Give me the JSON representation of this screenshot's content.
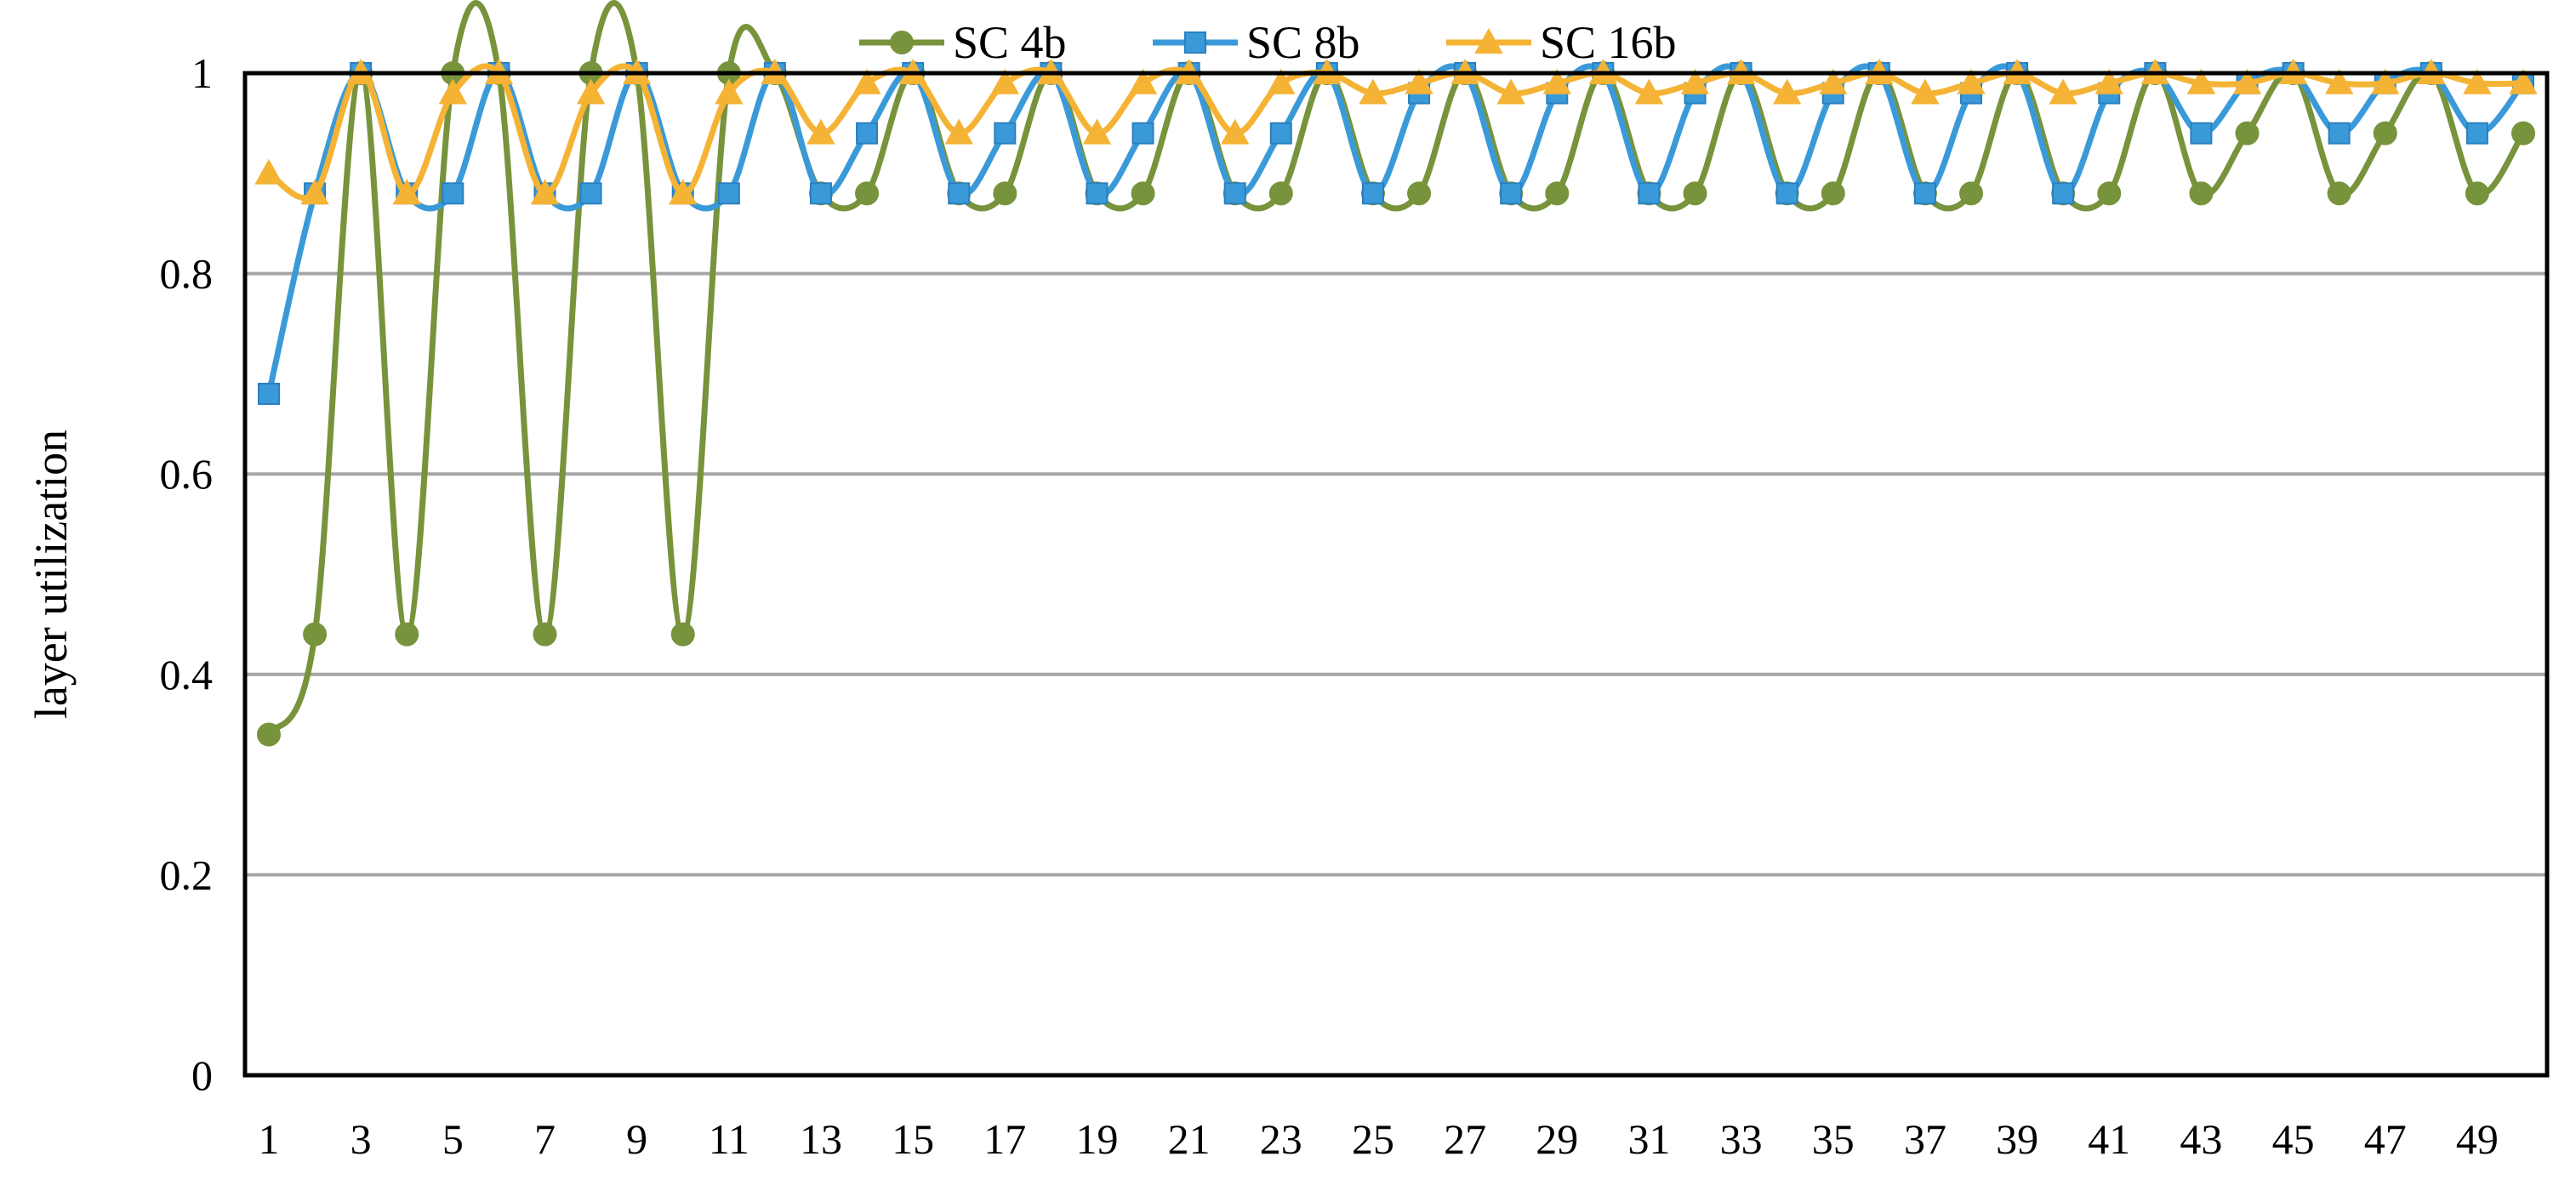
{
  "chart_data": {
    "type": "line",
    "title": "",
    "xlabel": "",
    "ylabel": "layer utilization",
    "ylim": [
      0,
      1
    ],
    "yticks": [
      "0",
      "0.2",
      "0.4",
      "0.6",
      "0.8",
      "1"
    ],
    "xlim": [
      1,
      50
    ],
    "xticks": [
      "1",
      "3",
      "5",
      "7",
      "9",
      "11",
      "13",
      "15",
      "17",
      "19",
      "21",
      "23",
      "25",
      "27",
      "29",
      "31",
      "33",
      "35",
      "37",
      "39",
      "41",
      "43",
      "45",
      "47",
      "49"
    ],
    "grid": "horizontal",
    "legend_position": "top",
    "smooth": true,
    "x": [
      1,
      2,
      3,
      4,
      5,
      6,
      7,
      8,
      9,
      10,
      11,
      12,
      13,
      14,
      15,
      16,
      17,
      18,
      19,
      20,
      21,
      22,
      23,
      24,
      25,
      26,
      27,
      28,
      29,
      30,
      31,
      32,
      33,
      34,
      35,
      36,
      37,
      38,
      39,
      40,
      41,
      42,
      43,
      44,
      45,
      46,
      47,
      48,
      49,
      50
    ],
    "series": [
      {
        "name": "SC 4b",
        "color": "#77933C",
        "marker": "circle",
        "values": [
          0.34,
          0.44,
          1,
          0.44,
          1,
          1,
          0.44,
          1,
          1,
          0.44,
          1,
          1,
          0.88,
          0.88,
          1,
          0.88,
          0.88,
          1,
          0.88,
          0.88,
          1,
          0.88,
          0.88,
          1,
          0.88,
          0.88,
          1,
          0.88,
          0.88,
          1,
          0.88,
          0.88,
          1,
          0.88,
          0.88,
          1,
          0.88,
          0.88,
          1,
          0.88,
          0.88,
          1,
          0.88,
          0.94,
          1,
          0.88,
          0.94,
          1,
          0.88,
          0.94
        ]
      },
      {
        "name": "SC 8b",
        "color": "#3A9AD9",
        "marker": "square",
        "values": [
          0.68,
          0.88,
          1,
          0.88,
          0.88,
          1,
          0.88,
          0.88,
          1,
          0.88,
          0.88,
          1,
          0.88,
          0.94,
          1,
          0.88,
          0.94,
          1,
          0.88,
          0.94,
          1,
          0.88,
          0.94,
          1,
          0.88,
          0.98,
          1,
          0.88,
          0.98,
          1,
          0.88,
          0.98,
          1,
          0.88,
          0.98,
          1,
          0.88,
          0.98,
          1,
          0.88,
          0.98,
          1,
          0.94,
          0.99,
          1,
          0.94,
          0.99,
          1,
          0.94,
          0.99
        ]
      },
      {
        "name": "SC 16b",
        "color": "#F5B335",
        "marker": "triangle",
        "values": [
          0.9,
          0.88,
          1,
          0.88,
          0.98,
          1,
          0.88,
          0.98,
          1,
          0.88,
          0.98,
          1,
          0.94,
          0.99,
          1,
          0.94,
          0.99,
          1,
          0.94,
          0.99,
          1,
          0.94,
          0.99,
          1,
          0.98,
          0.99,
          1,
          0.98,
          0.99,
          1,
          0.98,
          0.99,
          1,
          0.98,
          0.99,
          1,
          0.98,
          0.99,
          1,
          0.98,
          0.99,
          1,
          0.99,
          0.99,
          1,
          0.99,
          0.99,
          1,
          0.99,
          0.99
        ]
      }
    ]
  }
}
